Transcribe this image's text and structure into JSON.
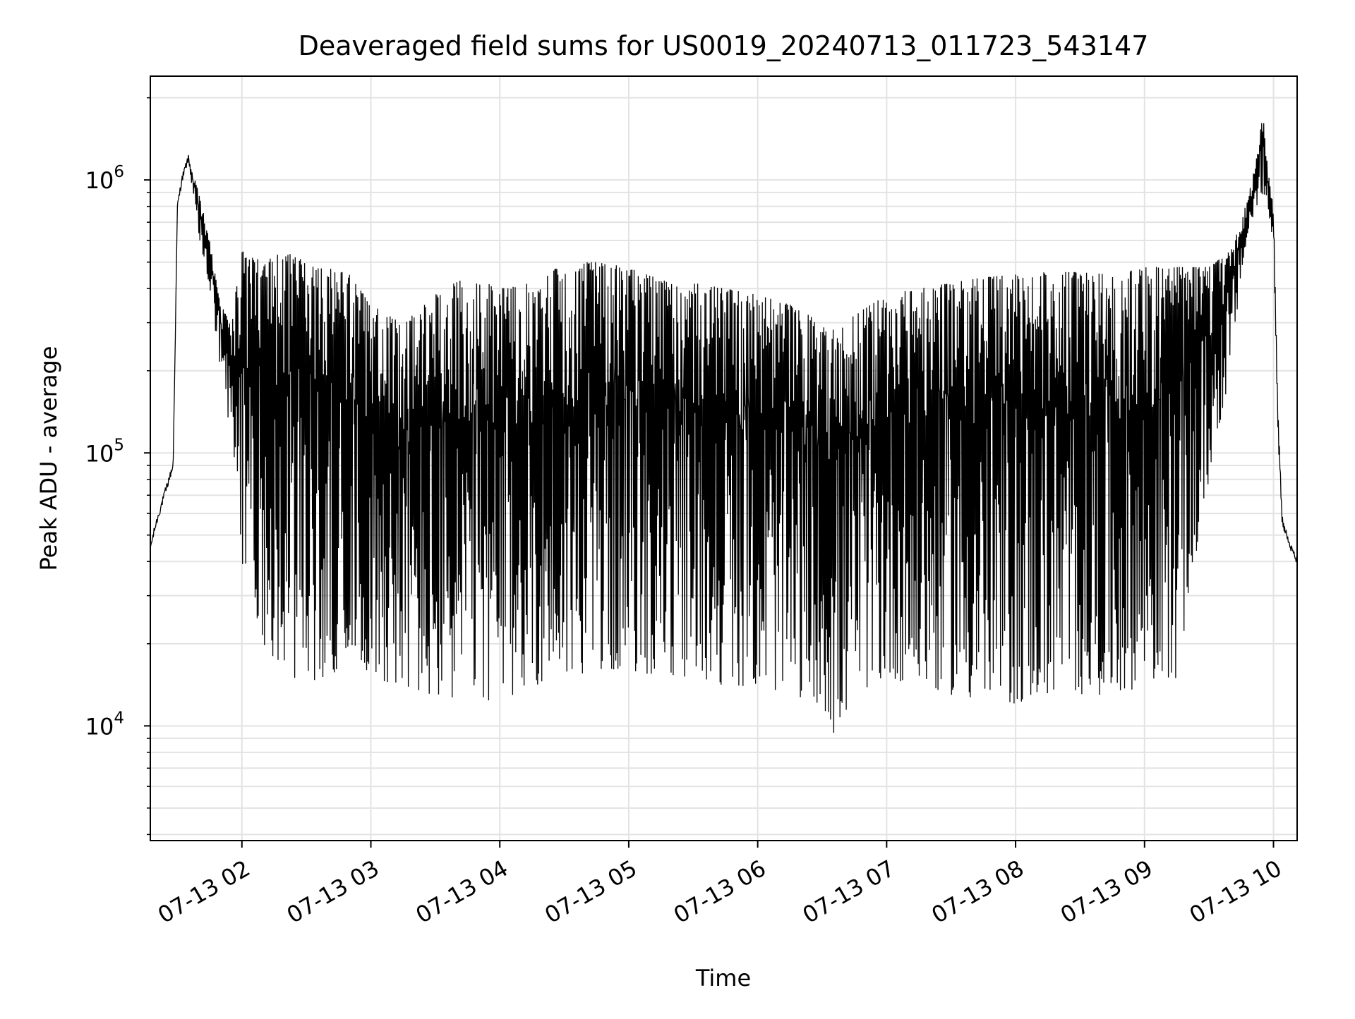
{
  "chart_data": {
    "type": "line",
    "title": "Deaveraged field sums for US0019_20240713_011723_543147",
    "xlabel": "Time",
    "ylabel": "Peak ADU - average",
    "yscale": "log",
    "ylim": [
      3800,
      2400000
    ],
    "xlim": [
      "2024-07-13 01:17:23",
      "2024-07-14 10:11:00"
    ],
    "x_tick_labels": [
      "07-13 02",
      "07-13 03",
      "07-13 04",
      "07-13 05",
      "07-13 06",
      "07-13 07",
      "07-13 08",
      "07-13 09",
      "07-13 10"
    ],
    "y_ticks": [
      {
        "value": 10000,
        "base": "10",
        "exp": "4"
      },
      {
        "value": 100000,
        "base": "10",
        "exp": "5"
      },
      {
        "value": 1000000,
        "base": "10",
        "exp": "6"
      }
    ],
    "grid": true,
    "line_color": "#000000",
    "series": [
      {
        "x": [
          "07-13 01:17:23",
          "07-13 01:20",
          "07-13 01:25",
          "07-13 01:28",
          "07-13 01:30",
          "07-13 01:32",
          "07-13 01:35",
          "07-13 01:40",
          "07-13 01:45",
          "07-13 01:50",
          "07-13 01:55",
          "07-13 02:00",
          "07-13 02:10",
          "07-13 02:20",
          "07-13 02:30",
          "07-13 02:40",
          "07-13 02:50",
          "07-13 03:00",
          "07-13 03:15",
          "07-13 03:30",
          "07-13 03:45",
          "07-13 04:00",
          "07-13 04:15",
          "07-13 04:30",
          "07-13 04:45",
          "07-13 05:00",
          "07-13 05:15",
          "07-13 05:30",
          "07-13 05:45",
          "07-13 06:00",
          "07-13 06:15",
          "07-13 06:30",
          "07-13 06:36",
          "07-13 06:45",
          "07-13 07:00",
          "07-13 07:15",
          "07-13 07:30",
          "07-13 07:45",
          "07-13 08:00",
          "07-13 08:15",
          "07-13 08:30",
          "07-13 08:45",
          "07-13 09:00",
          "07-13 09:15",
          "07-13 09:30",
          "07-13 09:40",
          "07-13 09:45",
          "07-13 09:50",
          "07-13 09:53",
          "07-13 09:55",
          "07-13 09:58",
          "07-13 10:00",
          "07-13 10:02",
          "07-13 10:04",
          "07-13 10:06",
          "07-13 10:08",
          "07-13 10:11"
        ],
        "upper": [
          45000,
          55000,
          75000,
          90000,
          800000,
          1000000,
          1200000,
          900000,
          600000,
          350000,
          300000,
          550000,
          500000,
          550000,
          500000,
          480000,
          450000,
          350000,
          300000,
          380000,
          450000,
          400000,
          420000,
          500000,
          500000,
          480000,
          430000,
          420000,
          400000,
          380000,
          350000,
          300000,
          280000,
          320000,
          380000,
          400000,
          420000,
          440000,
          450000,
          460000,
          460000,
          450000,
          480000,
          480000,
          480000,
          550000,
          700000,
          1000000,
          1300000,
          1800000,
          1000000,
          800000,
          150000,
          60000,
          50000,
          45000,
          40000
        ],
        "lower": [
          45000,
          55000,
          75000,
          90000,
          800000,
          1000000,
          1200000,
          600000,
          400000,
          200000,
          100000,
          40000,
          20000,
          15000,
          15000,
          14000,
          20000,
          15000,
          14000,
          12000,
          13000,
          12000,
          14000,
          15000,
          16000,
          16000,
          15000,
          15000,
          14000,
          14000,
          13000,
          12000,
          9000,
          13000,
          15000,
          14000,
          13000,
          12000,
          12000,
          13000,
          13000,
          13000,
          14000,
          15000,
          80000,
          200000,
          450000,
          700000,
          800000,
          900000,
          700000,
          600000,
          120000,
          55000,
          48000,
          44000,
          40000
        ]
      }
    ]
  }
}
